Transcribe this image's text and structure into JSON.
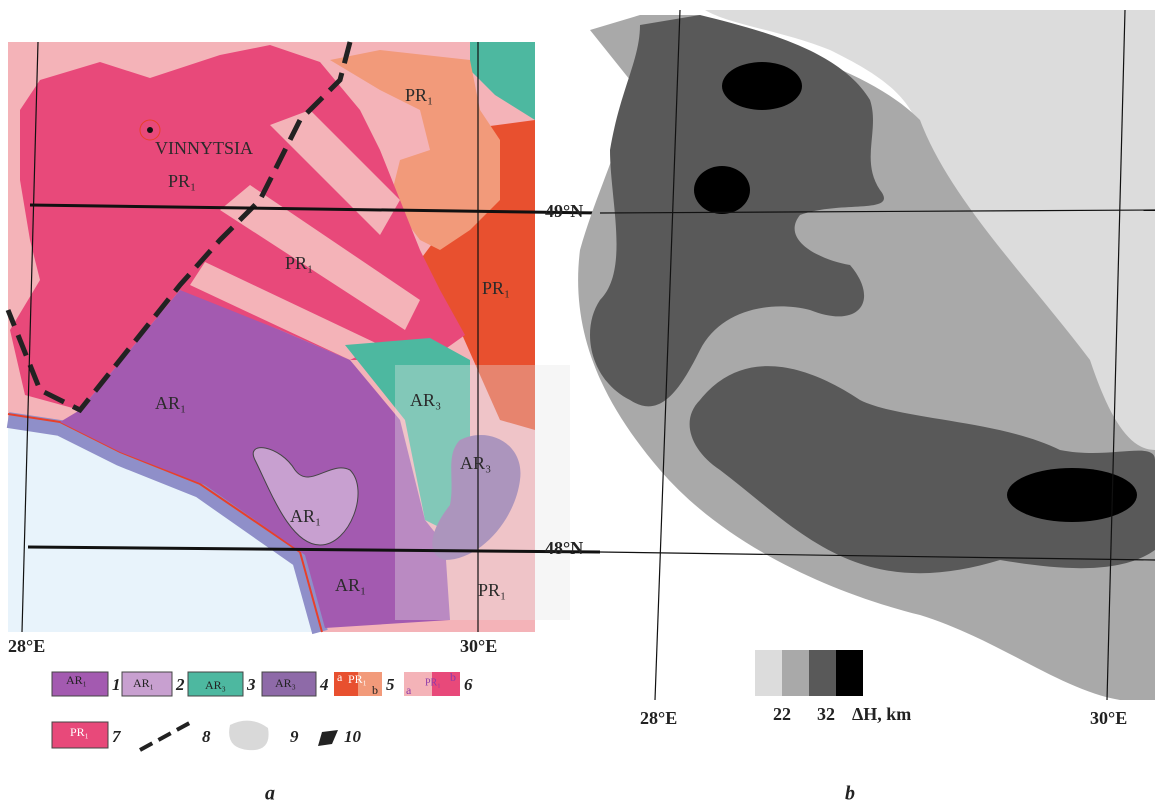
{
  "panel_a": {
    "caption": "a",
    "labels": [
      "VINNYTSIA",
      "PR₁",
      "PR₁",
      "PR₁",
      "PR₁",
      "AR₁",
      "AR₃",
      "AR₃",
      "AR₁",
      "AR₁",
      "PR₁"
    ],
    "lon_labels": [
      "28°E",
      "30°E"
    ],
    "lat_labels": [
      "49°N",
      "48°N"
    ],
    "legend": [
      {
        "number": "1",
        "label": "AR₁"
      },
      {
        "number": "2",
        "label": "AR₁"
      },
      {
        "number": "3",
        "label": "AR₃"
      },
      {
        "number": "4",
        "label": "AR₃"
      },
      {
        "number": "5",
        "label": "PR₁",
        "a": "a",
        "b": "b"
      },
      {
        "number": "6",
        "label": "PR₁",
        "a": "a",
        "b": "b"
      },
      {
        "number": "7",
        "label": "PR₁"
      },
      {
        "number": "8"
      },
      {
        "number": "9"
      },
      {
        "number": "10"
      }
    ]
  },
  "panel_b": {
    "caption": "b",
    "lon_labels": [
      "28°E",
      "30°E"
    ],
    "scale": {
      "min": "22",
      "max": "32",
      "unit": "ΔH, km"
    }
  }
}
